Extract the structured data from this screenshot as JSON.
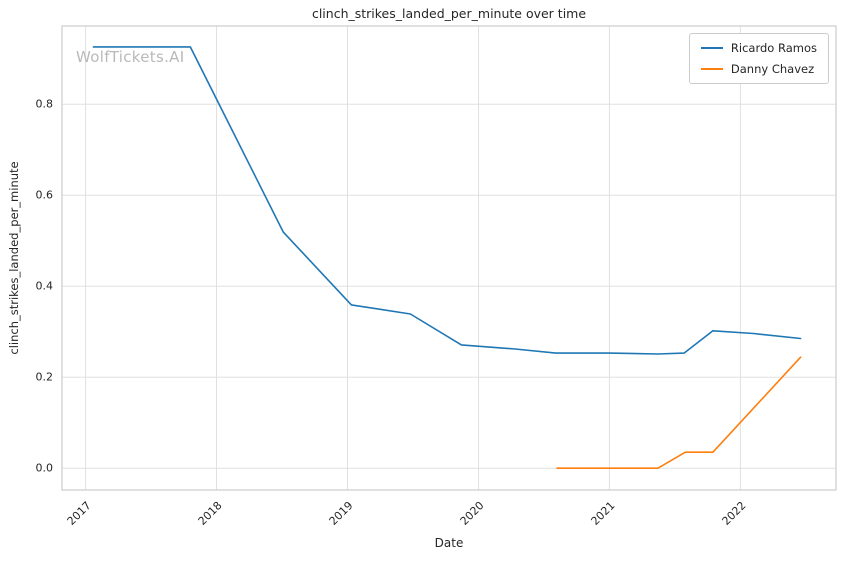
{
  "watermark": "WolfTickets.AI",
  "chart_data": {
    "type": "line",
    "title": "clinch_strikes_landed_per_minute over time",
    "xlabel": "Date",
    "ylabel": "clinch_strikes_landed_per_minute",
    "x_ticks": [
      2017,
      2018,
      2019,
      2020,
      2021,
      2022
    ],
    "y_ticks": [
      0.0,
      0.2,
      0.4,
      0.6,
      0.8
    ],
    "xlim": [
      2016.82,
      2022.73
    ],
    "ylim": [
      -0.048,
      0.972
    ],
    "grid": true,
    "legend_position": "upper right",
    "colors": {
      "grid": "#e0e0e0",
      "border": "#cccccc",
      "text": "#262626",
      "watermark": "#b9b9b9"
    },
    "series": [
      {
        "name": "Ricardo Ramos",
        "color": "#1f77b4",
        "x": [
          2017.06,
          2017.8,
          2018.51,
          2019.03,
          2019.48,
          2019.87,
          2020.28,
          2020.59,
          2021.0,
          2021.37,
          2021.57,
          2021.79,
          2022.1,
          2022.46
        ],
        "y": [
          0.926,
          0.926,
          0.519,
          0.359,
          0.339,
          0.271,
          0.262,
          0.253,
          0.253,
          0.251,
          0.253,
          0.302,
          0.296,
          0.285
        ]
      },
      {
        "name": "Danny Chavez",
        "color": "#ff7f0e",
        "x": [
          2020.6,
          2020.95,
          2021.2,
          2021.37,
          2021.58,
          2021.79,
          2022.46
        ],
        "y": [
          0.0,
          0.0,
          0.0,
          0.0,
          0.035,
          0.035,
          0.244
        ]
      }
    ]
  }
}
